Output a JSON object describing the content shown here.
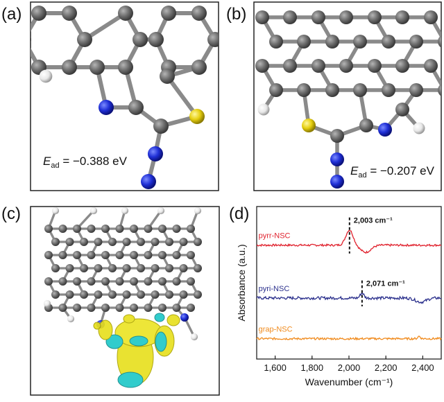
{
  "panels": {
    "a": {
      "label": "(a)",
      "energy": {
        "symbol": "E",
        "subscript": "ad",
        "value": " = −0.388 eV"
      }
    },
    "b": {
      "label": "(b)",
      "energy": {
        "symbol": "E",
        "subscript": "ad",
        "value": " = −0.207 eV"
      }
    },
    "c": {
      "label": "(c)"
    },
    "d": {
      "label": "(d)"
    }
  },
  "colors": {
    "carbon": "#6b6b6b",
    "nitrogen": "#1f2fd6",
    "sulfur": "#e6cf10",
    "hydrogen": "#f2f2f2",
    "iso_yellow": "#e8e020",
    "iso_cyan": "#20c8c8"
  },
  "chart_data": {
    "type": "line",
    "xlabel": "Wavenumber (cm⁻¹)",
    "ylabel": "Absorbance (a.u.)",
    "xlim": [
      1500,
      2500
    ],
    "x_ticks": [
      1600,
      1800,
      2000,
      2200,
      2400
    ],
    "x_tick_labels": [
      "1,600",
      "1,800",
      "2,000",
      "2,200",
      "2,400"
    ],
    "series": [
      {
        "name": "pyrr-NSC",
        "color": "#e0202c",
        "baseline": 0.0,
        "peak_x": 2003,
        "peak_height": 0.75,
        "peak_width": 28,
        "dip_x": 2090,
        "dip_depth": 0.35,
        "noise": 0.05
      },
      {
        "name": "pyri-NSC",
        "color": "#2a2f8c",
        "baseline": -2.6,
        "peak_x": 2071,
        "peak_height": 0.25,
        "peak_width": 14,
        "dip_x": 2390,
        "dip_depth": 0.2,
        "noise": 0.07
      },
      {
        "name": "grap-NSC",
        "color": "#f08a1c",
        "baseline": -4.6,
        "peak_x": 2380,
        "peak_height": 0.12,
        "peak_width": 10,
        "dip_x": 2000,
        "dip_depth": 0.0,
        "noise": 0.05
      }
    ],
    "annotations": [
      {
        "text": "2,003 cm⁻¹",
        "x": 2003,
        "series": "pyrr-NSC"
      },
      {
        "text": "2,071 cm⁻¹",
        "x": 2071,
        "series": "pyri-NSC"
      }
    ],
    "ylim": [
      -5.6,
      1.9
    ]
  }
}
